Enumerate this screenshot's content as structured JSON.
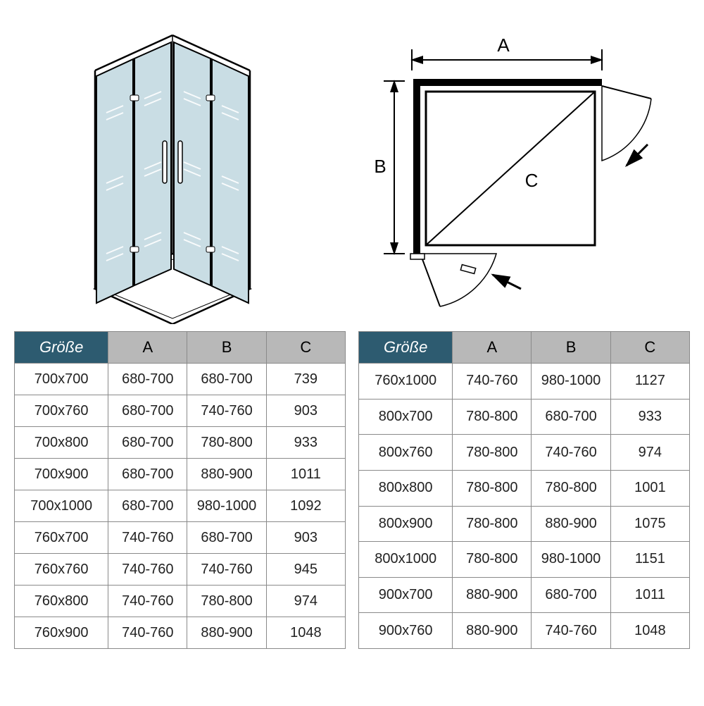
{
  "diagrams": {
    "top_view": {
      "label_a": "A",
      "label_b": "B",
      "label_c": "C"
    }
  },
  "tables": {
    "columns": [
      "Größe",
      "A",
      "B",
      "C"
    ],
    "header_bg_size": "#2d5b70",
    "header_fg_size": "#ffffff",
    "header_bg_col": "#b8b8b8",
    "header_fg_col": "#000000",
    "border_color": "#8a8a8a",
    "cell_fontsize": 20,
    "left": [
      [
        "700x700",
        "680-700",
        "680-700",
        "739"
      ],
      [
        "700x760",
        "680-700",
        "740-760",
        "903"
      ],
      [
        "700x800",
        "680-700",
        "780-800",
        "933"
      ],
      [
        "700x900",
        "680-700",
        "880-900",
        "1011"
      ],
      [
        "700x1000",
        "680-700",
        "980-1000",
        "1092"
      ],
      [
        "760x700",
        "740-760",
        "680-700",
        "903"
      ],
      [
        "760x760",
        "740-760",
        "740-760",
        "945"
      ],
      [
        "760x800",
        "740-760",
        "780-800",
        "974"
      ],
      [
        "760x900",
        "740-760",
        "880-900",
        "1048"
      ]
    ],
    "right": [
      [
        "760x1000",
        "740-760",
        "980-1000",
        "1127"
      ],
      [
        "800x700",
        "780-800",
        "680-700",
        "933"
      ],
      [
        "800x760",
        "780-800",
        "740-760",
        "974"
      ],
      [
        "800x800",
        "780-800",
        "780-800",
        "1001"
      ],
      [
        "800x900",
        "780-800",
        "880-900",
        "1075"
      ],
      [
        "800x1000",
        "780-800",
        "980-1000",
        "1151"
      ],
      [
        "900x700",
        "880-900",
        "680-700",
        "1011"
      ],
      [
        "900x760",
        "880-900",
        "740-760",
        "1048"
      ]
    ]
  }
}
